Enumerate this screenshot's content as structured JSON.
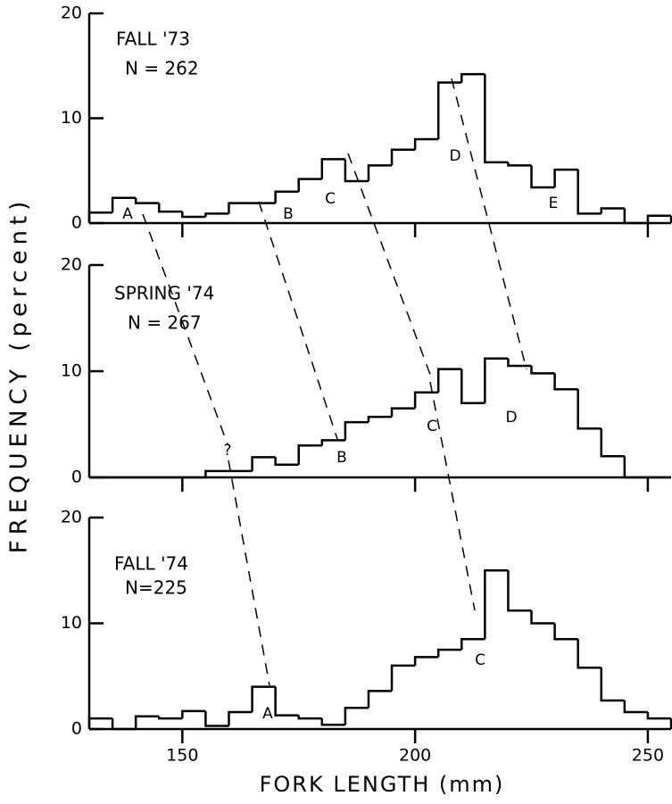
{
  "ylabel": "FREQUENCY (percent)",
  "xlabel": "FORK LENGTH (mm)",
  "chart_data": [
    {
      "type": "histogram",
      "annotations": [
        "FALL '73",
        "N = 262",
        "A",
        "B",
        "C",
        "D",
        "E"
      ],
      "bins": [
        130,
        135,
        140,
        145,
        150,
        155,
        160,
        165,
        170,
        175,
        180,
        185,
        190,
        195,
        200,
        205,
        210,
        215,
        220,
        225,
        230,
        235,
        240,
        245,
        250,
        255
      ],
      "values": [
        1,
        2.4,
        1.9,
        1.1,
        0.6,
        0.9,
        1.9,
        1.9,
        3,
        4.2,
        6.1,
        4,
        5.5,
        7,
        8,
        13.4,
        14.2,
        5.8,
        5.5,
        3.4,
        5.1,
        0.9,
        1.4,
        0,
        0.7
      ],
      "xlim": [
        130,
        255
      ],
      "ylim": [
        0,
        20
      ],
      "yticks": [
        0,
        10,
        20
      ],
      "xticks": [
        150,
        200,
        250
      ]
    },
    {
      "type": "histogram",
      "annotations": [
        "SPRING '74",
        "N = 267",
        "?",
        "B",
        "C",
        "D"
      ],
      "bins": [
        130,
        135,
        140,
        145,
        150,
        155,
        160,
        165,
        170,
        175,
        180,
        185,
        190,
        195,
        200,
        205,
        210,
        215,
        220,
        225,
        230,
        235,
        240,
        245,
        250,
        255
      ],
      "values": [
        0,
        0,
        0,
        0,
        0,
        0.6,
        0.6,
        1.9,
        1.2,
        3,
        3.5,
        5.2,
        5.7,
        6.5,
        8,
        10.2,
        7,
        11.2,
        10.5,
        9.8,
        8.3,
        4.6,
        2,
        0,
        0
      ],
      "xlim": [
        130,
        255
      ],
      "ylim": [
        0,
        20
      ],
      "yticks": [
        0,
        10,
        20
      ],
      "xticks": [
        150,
        200,
        250
      ]
    },
    {
      "type": "histogram",
      "annotations": [
        "FALL '74",
        "N=225",
        "A",
        "C"
      ],
      "bins": [
        130,
        135,
        140,
        145,
        150,
        155,
        160,
        165,
        170,
        175,
        180,
        185,
        190,
        195,
        200,
        205,
        210,
        215,
        220,
        225,
        230,
        235,
        240,
        245,
        250,
        255
      ],
      "values": [
        1,
        0,
        1.2,
        1,
        1.7,
        0.3,
        1.6,
        4,
        1.3,
        1,
        0.4,
        2,
        3.6,
        6,
        6.8,
        7.5,
        8.5,
        15,
        11.2,
        10,
        8.5,
        5.8,
        2.7,
        1.6,
        1
      ],
      "xlim": [
        130,
        255
      ],
      "ylim": [
        0,
        20
      ],
      "yticks": [
        0,
        10,
        20
      ],
      "xticks": [
        150,
        200,
        250
      ]
    }
  ]
}
